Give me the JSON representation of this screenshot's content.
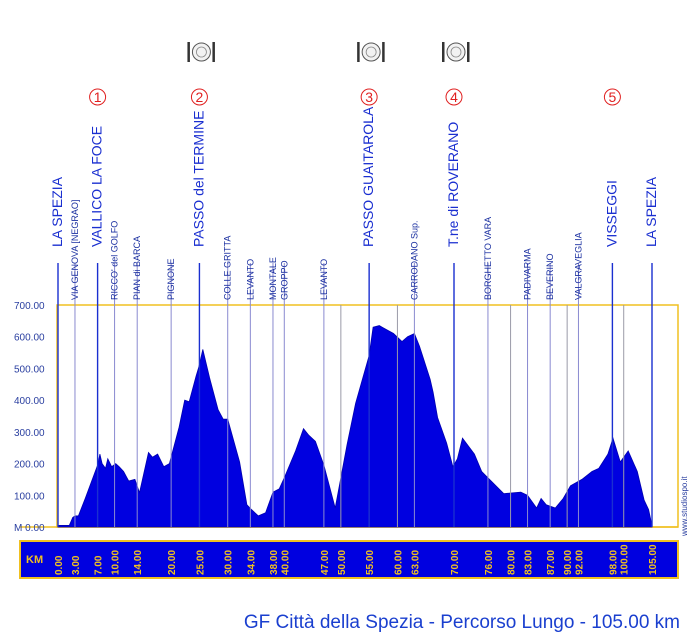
{
  "chart_data": {
    "type": "area",
    "subtitle": "GF Città della Spezia - Percorso Lungo - 105.00 km",
    "xlabel": "KM",
    "ylabel": "M",
    "xlim": [
      0,
      105
    ],
    "ylim": [
      0,
      700
    ],
    "y_ticks": [
      "0.00",
      "100.00",
      "200.00",
      "300.00",
      "400.00",
      "500.00",
      "600.00",
      "700.00"
    ],
    "x_ticks": [
      "0.00",
      "3.00",
      "7.00",
      "10.00",
      "14.00",
      "20.00",
      "25.00",
      "30.00",
      "34.00",
      "38.00",
      "40.00",
      "47.00",
      "50.00",
      "55.00",
      "60.00",
      "63.00",
      "70.00",
      "76.00",
      "80.00",
      "83.00",
      "87.00",
      "90.00",
      "92.00",
      "98.00",
      "100.00",
      "105.00"
    ],
    "grid": false,
    "fill_color": "#0000e0",
    "frame_color": "#f0c020",
    "profile": {
      "x": [
        0,
        2,
        2.6,
        3,
        3.6,
        4.8,
        7,
        7.4,
        7.8,
        8.4,
        8.8,
        9.5,
        10.2,
        10.8,
        11.6,
        12.5,
        13.6,
        14.4,
        16,
        16.7,
        17.6,
        18.7,
        19.7,
        21.4,
        22.4,
        23.2,
        24.4,
        24.9,
        25.6,
        26.8,
        28.3,
        29.2,
        30,
        32.1,
        33.4,
        34.2,
        35.4,
        36.7,
        38,
        39.1,
        40,
        42,
        43.4,
        44.3,
        45.5,
        47,
        49,
        51.1,
        52.6,
        55,
        55.7,
        56.8,
        58.3,
        59.3,
        60.8,
        61.8,
        63,
        63.9,
        65.8,
        66.3,
        67.1,
        68.7,
        69.8,
        70.6,
        71.5,
        73.6,
        74.9,
        76,
        78.8,
        81.8,
        83,
        84.6,
        85.4,
        86.3,
        87.9,
        89.3,
        90.6,
        92.6,
        94.4,
        95.6,
        97.2,
        98.1,
        99.4,
        100.8,
        102.4,
        103.6,
        104.4,
        105
      ],
      "y": [
        5,
        5,
        30,
        35,
        35,
        90,
        195,
        230,
        200,
        185,
        215,
        190,
        200,
        190,
        175,
        145,
        150,
        108,
        235,
        220,
        230,
        190,
        200,
        315,
        400,
        395,
        475,
        505,
        560,
        470,
        370,
        340,
        340,
        205,
        70,
        55,
        35,
        45,
        110,
        120,
        155,
        240,
        310,
        290,
        270,
        195,
        60,
        260,
        390,
        540,
        630,
        635,
        620,
        610,
        585,
        600,
        610,
        570,
        465,
        425,
        345,
        265,
        190,
        215,
        280,
        230,
        175,
        155,
        105,
        110,
        100,
        60,
        90,
        70,
        60,
        90,
        130,
        150,
        175,
        185,
        230,
        280,
        205,
        240,
        175,
        85,
        55,
        5
      ]
    },
    "markers": [
      {
        "km": 0,
        "label": "LA SPEZIA",
        "major": true
      },
      {
        "km": 3,
        "label": "VIA GENOVA [NEGRAO]",
        "major": false
      },
      {
        "km": 7,
        "label": "VALLICO LA FOCE",
        "major": true,
        "badge": "1"
      },
      {
        "km": 10,
        "label": "RICCO' del GOLFO",
        "major": false
      },
      {
        "km": 14,
        "label": "PIAN di BARCA",
        "major": false
      },
      {
        "km": 20,
        "label": "PIGNONE",
        "major": false
      },
      {
        "km": 25,
        "label": "PASSO del TERMINE",
        "major": true,
        "badge": "2",
        "food": true
      },
      {
        "km": 30,
        "label": "COLLE GRITTA",
        "major": false
      },
      {
        "km": 34,
        "label": "LEVANTO",
        "major": false
      },
      {
        "km": 38,
        "label": "MONTALE",
        "major": false
      },
      {
        "km": 40,
        "label": "GROPPO",
        "major": false
      },
      {
        "km": 47,
        "label": "LEVANTO",
        "major": false
      },
      {
        "km": 55,
        "label": "PASSO GUAITAROLA",
        "major": true,
        "badge": "3",
        "food": true
      },
      {
        "km": 63,
        "label": "CARRODANO Sup.",
        "major": false
      },
      {
        "km": 70,
        "label": "T.ne di ROVERANO",
        "major": true,
        "badge": "4",
        "food": true
      },
      {
        "km": 76,
        "label": "BORGHETTO VARA",
        "major": false
      },
      {
        "km": 83,
        "label": "PADIVARMA",
        "major": false
      },
      {
        "km": 87,
        "label": "BEVERINO",
        "major": false
      },
      {
        "km": 92,
        "label": "VALGRAVEGLIA",
        "major": false
      },
      {
        "km": 98,
        "label": "VISSEGGI",
        "major": true,
        "badge": "5"
      },
      {
        "km": 105,
        "label": "LA SPEZIA",
        "major": true
      }
    ],
    "unlabeled_ref_lines_km": [
      50,
      60,
      80,
      90,
      100
    ],
    "watermark": "www.studiospo.it"
  }
}
